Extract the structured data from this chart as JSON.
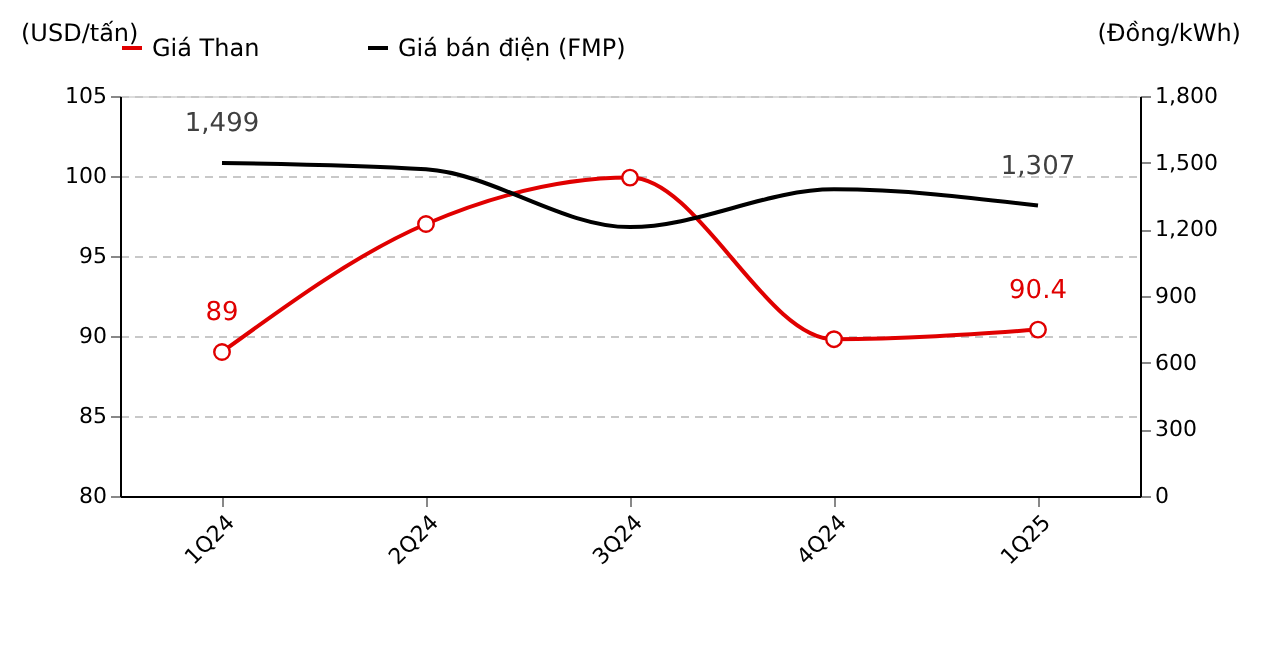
{
  "chart_data": {
    "type": "line",
    "ylabel": "(USD/tấn)",
    "y2label": "(Đồng/kWh)",
    "categories": [
      "1Q24",
      "2Q24",
      "3Q24",
      "4Q24",
      "1Q25"
    ],
    "series": [
      {
        "name": "Giá Than",
        "color": "#e00000",
        "values": [
          89,
          97,
          99.9,
          89.8,
          90.4
        ],
        "marker": "circle",
        "value_labels": [
          "89",
          null,
          null,
          null,
          "90.4"
        ]
      },
      {
        "name": "Giá bán điện (FMP)",
        "color": "#000000",
        "axis": "y2",
        "values": [
          1499,
          1470,
          1210,
          1380,
          1307
        ],
        "marker": "none",
        "value_labels": [
          "1,499",
          null,
          null,
          null,
          "1,307"
        ]
      }
    ],
    "ylim": [
      80,
      105
    ],
    "yticks": [
      80,
      85,
      90,
      95,
      100,
      105
    ],
    "y2lim": [
      0,
      1800
    ],
    "y2ticks": [
      {
        "value": 0,
        "label": "0"
      },
      {
        "value": 300,
        "label": "300"
      },
      {
        "value": 600,
        "label": "600"
      },
      {
        "value": 900,
        "label": "900"
      },
      {
        "value": 1200,
        "label": "1,200"
      },
      {
        "value": 1500,
        "label": "1,500"
      },
      {
        "value": 1800,
        "label": "1,800"
      }
    ],
    "grid": "y",
    "legend": "top",
    "line_style": "solid"
  }
}
